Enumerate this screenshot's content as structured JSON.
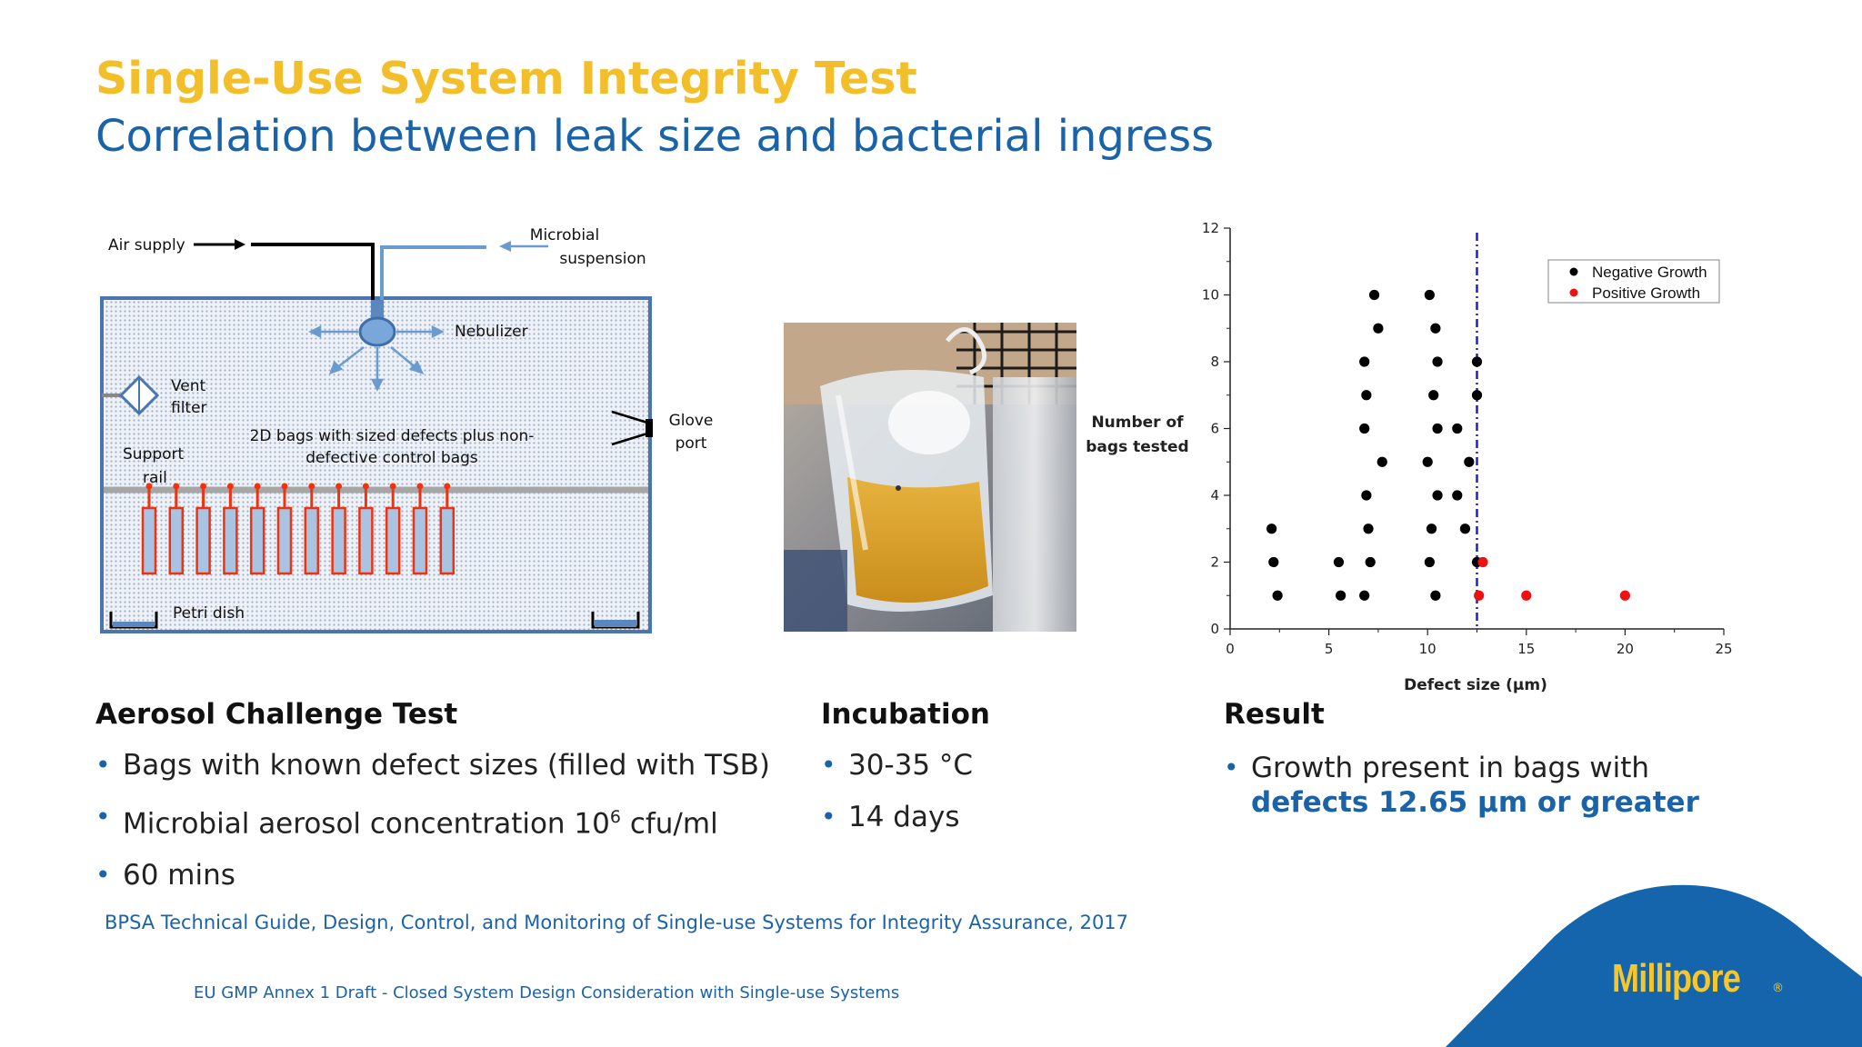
{
  "slide": {
    "title": "Single-Use System Integrity Test",
    "subtitle": "Correlation between leak size and bacterial ingress"
  },
  "diagram": {
    "labels": {
      "air_supply": "Air supply",
      "microbial_1": "Microbial",
      "microbial_2": "suspension",
      "nebulizer": "Nebulizer",
      "vent_1": "Vent",
      "vent_2": "filter",
      "bags_1": "2D bags with sized defects plus non-",
      "bags_2": "defective control bags",
      "support_1": "Support",
      "support_2": "rail",
      "glove_1": "Glove",
      "glove_2": "port",
      "petri": "Petri dish"
    },
    "bag_count": 12
  },
  "sections": {
    "aerosol": {
      "heading": "Aerosol Challenge Test",
      "bullet1": "Bags with known defect sizes (filled with TSB)",
      "bullet2_pre": "Microbial aerosol concentration 10",
      "bullet2_sup": "6",
      "bullet2_post": " cfu/ml",
      "bullet3": "60 mins"
    },
    "incubation": {
      "heading": "Incubation",
      "bullet1": "30-35 °C",
      "bullet2": "14 days"
    },
    "result": {
      "heading": "Result",
      "text": "Growth present in bags with",
      "highlight": "defects 12.65 µm or greater"
    }
  },
  "references": {
    "ref1": "BPSA Technical Guide, Design, Control, and Monitoring of Single-use Systems for Integrity Assurance, 2017",
    "ref2": "EU GMP Annex 1 Draft - Closed System Design Consideration with Single-use Systems"
  },
  "brand": {
    "name": "Millipore",
    "mark": "®",
    "blue": "#1565ad",
    "yellow": "#f6c62d"
  },
  "chart_data": {
    "type": "scatter",
    "xlabel": "Defect size (µm)",
    "ylabel_line1": "Number of",
    "ylabel_line2": "bags tested",
    "xlim": [
      0,
      25
    ],
    "ylim": [
      0,
      12
    ],
    "xticks": [
      0,
      5,
      10,
      15,
      20,
      25
    ],
    "yticks": [
      0,
      2,
      4,
      6,
      8,
      10,
      12
    ],
    "threshold_x": 12.5,
    "legend_position": "top-right",
    "series": [
      {
        "name": "Negative Growth",
        "color": "#000000",
        "points": [
          [
            2.1,
            3
          ],
          [
            2.2,
            2
          ],
          [
            2.4,
            1
          ],
          [
            5.5,
            2
          ],
          [
            5.6,
            1
          ],
          [
            6.8,
            1
          ],
          [
            6.9,
            4
          ],
          [
            6.8,
            6
          ],
          [
            6.9,
            7
          ],
          [
            6.8,
            8
          ],
          [
            7.0,
            3
          ],
          [
            7.1,
            2
          ],
          [
            7.3,
            10
          ],
          [
            7.5,
            9
          ],
          [
            7.7,
            5
          ],
          [
            10.0,
            5
          ],
          [
            10.1,
            10
          ],
          [
            10.1,
            2
          ],
          [
            10.2,
            3
          ],
          [
            10.3,
            7
          ],
          [
            10.4,
            1
          ],
          [
            10.4,
            9
          ],
          [
            10.5,
            6
          ],
          [
            10.5,
            4
          ],
          [
            10.5,
            8
          ],
          [
            11.5,
            6
          ],
          [
            11.5,
            4
          ],
          [
            11.9,
            3
          ],
          [
            12.1,
            5
          ],
          [
            12.5,
            2
          ],
          [
            12.5,
            8
          ],
          [
            12.5,
            7
          ]
        ]
      },
      {
        "name": "Positive Growth",
        "color": "#ee1111",
        "points": [
          [
            12.6,
            1
          ],
          [
            12.8,
            2
          ],
          [
            15.0,
            1
          ],
          [
            20.0,
            1
          ]
        ]
      }
    ]
  }
}
